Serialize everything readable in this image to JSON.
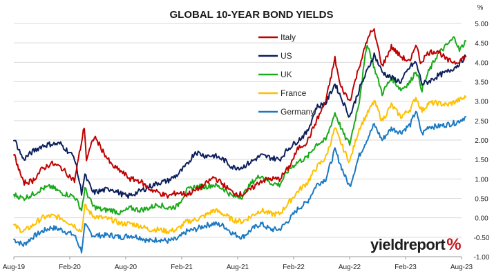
{
  "chart_data": {
    "type": "line",
    "title": "GLOBAL 10-YEAR BOND YIELDS",
    "y_unit": "%",
    "ylim": [
      -1.0,
      5.0
    ],
    "y_ticks": [
      "5.00",
      "4.50",
      "4.00",
      "3.50",
      "3.00",
      "2.50",
      "2.00",
      "1.50",
      "1.00",
      "0.50",
      "0.00",
      "-0.50",
      "-1.00"
    ],
    "x_tick_labels": [
      "Aug-19",
      "Feb-20",
      "Aug-20",
      "Feb-21",
      "Aug-21",
      "Feb-22",
      "Aug-22",
      "Feb-23",
      "Aug-23"
    ],
    "x_range": [
      "2019-08",
      "2023-08"
    ],
    "legend_position": "top-center",
    "grid": "horizontal",
    "series": [
      {
        "name": "Italy",
        "color": "#c00000",
        "points": [
          [
            "2019-08-01",
            1.65
          ],
          [
            "2019-09-01",
            0.9
          ],
          [
            "2019-10-01",
            0.95
          ],
          [
            "2019-11-01",
            1.25
          ],
          [
            "2019-12-01",
            1.4
          ],
          [
            "2020-01-01",
            1.3
          ],
          [
            "2020-02-15",
            0.95
          ],
          [
            "2020-03-18",
            2.35
          ],
          [
            "2020-03-25",
            1.5
          ],
          [
            "2020-04-20",
            2.1
          ],
          [
            "2020-05-15",
            1.75
          ],
          [
            "2020-06-15",
            1.35
          ],
          [
            "2020-07-15",
            1.2
          ],
          [
            "2020-08-15",
            1.0
          ],
          [
            "2020-09-15",
            0.95
          ],
          [
            "2020-10-15",
            0.75
          ],
          [
            "2020-11-15",
            0.65
          ],
          [
            "2020-12-15",
            0.55
          ],
          [
            "2021-01-15",
            0.65
          ],
          [
            "2021-02-15",
            0.6
          ],
          [
            "2021-03-15",
            0.7
          ],
          [
            "2021-04-15",
            0.85
          ],
          [
            "2021-05-15",
            1.05
          ],
          [
            "2021-06-15",
            0.85
          ],
          [
            "2021-07-15",
            0.65
          ],
          [
            "2021-08-15",
            0.6
          ],
          [
            "2021-09-15",
            0.75
          ],
          [
            "2021-10-15",
            0.95
          ],
          [
            "2021-11-15",
            1.0
          ],
          [
            "2021-12-15",
            1.0
          ],
          [
            "2022-01-15",
            1.3
          ],
          [
            "2022-02-15",
            1.8
          ],
          [
            "2022-03-15",
            1.95
          ],
          [
            "2022-04-15",
            2.5
          ],
          [
            "2022-05-15",
            3.0
          ],
          [
            "2022-06-14",
            4.1
          ],
          [
            "2022-07-01",
            3.4
          ],
          [
            "2022-08-01",
            3.0
          ],
          [
            "2022-09-01",
            3.9
          ],
          [
            "2022-10-05",
            4.75
          ],
          [
            "2022-10-20",
            4.8
          ],
          [
            "2022-11-15",
            3.9
          ],
          [
            "2022-12-15",
            4.4
          ],
          [
            "2023-01-15",
            4.15
          ],
          [
            "2023-02-15",
            4.0
          ],
          [
            "2023-03-05",
            4.5
          ],
          [
            "2023-03-20",
            4.0
          ],
          [
            "2023-04-15",
            4.25
          ],
          [
            "2023-05-15",
            4.3
          ],
          [
            "2023-06-15",
            4.05
          ],
          [
            "2023-07-15",
            4.0
          ],
          [
            "2023-08-15",
            4.15
          ]
        ]
      },
      {
        "name": "US",
        "color": "#0c1f5c",
        "points": [
          [
            "2019-08-01",
            2.05
          ],
          [
            "2019-09-01",
            1.5
          ],
          [
            "2019-10-01",
            1.7
          ],
          [
            "2019-11-01",
            1.85
          ],
          [
            "2019-12-01",
            1.9
          ],
          [
            "2020-01-01",
            1.9
          ],
          [
            "2020-02-15",
            1.55
          ],
          [
            "2020-03-09",
            0.65
          ],
          [
            "2020-03-20",
            1.1
          ],
          [
            "2020-04-15",
            0.65
          ],
          [
            "2020-05-15",
            0.7
          ],
          [
            "2020-06-15",
            0.75
          ],
          [
            "2020-07-15",
            0.62
          ],
          [
            "2020-08-05",
            0.55
          ],
          [
            "2020-09-15",
            0.68
          ],
          [
            "2020-10-15",
            0.8
          ],
          [
            "2020-11-15",
            0.9
          ],
          [
            "2020-12-15",
            0.95
          ],
          [
            "2021-01-15",
            1.1
          ],
          [
            "2021-02-15",
            1.35
          ],
          [
            "2021-03-15",
            1.7
          ],
          [
            "2021-04-15",
            1.6
          ],
          [
            "2021-05-15",
            1.6
          ],
          [
            "2021-06-15",
            1.5
          ],
          [
            "2021-07-15",
            1.3
          ],
          [
            "2021-08-15",
            1.3
          ],
          [
            "2021-09-15",
            1.45
          ],
          [
            "2021-10-15",
            1.6
          ],
          [
            "2021-11-15",
            1.55
          ],
          [
            "2021-12-15",
            1.5
          ],
          [
            "2022-01-15",
            1.8
          ],
          [
            "2022-02-15",
            2.0
          ],
          [
            "2022-03-15",
            2.2
          ],
          [
            "2022-04-15",
            2.85
          ],
          [
            "2022-05-15",
            2.95
          ],
          [
            "2022-06-14",
            3.45
          ],
          [
            "2022-07-15",
            2.9
          ],
          [
            "2022-08-01",
            2.6
          ],
          [
            "2022-09-01",
            3.3
          ],
          [
            "2022-10-20",
            4.2
          ],
          [
            "2022-11-15",
            3.75
          ],
          [
            "2022-12-15",
            3.6
          ],
          [
            "2023-01-15",
            3.5
          ],
          [
            "2023-02-15",
            3.9
          ],
          [
            "2023-03-05",
            4.0
          ],
          [
            "2023-03-25",
            3.45
          ],
          [
            "2023-04-15",
            3.5
          ],
          [
            "2023-05-15",
            3.65
          ],
          [
            "2023-06-15",
            3.75
          ],
          [
            "2023-07-15",
            3.9
          ],
          [
            "2023-08-15",
            4.15
          ]
        ]
      },
      {
        "name": "UK",
        "color": "#1aaa1a",
        "points": [
          [
            "2019-08-01",
            0.6
          ],
          [
            "2019-09-01",
            0.5
          ],
          [
            "2019-10-01",
            0.6
          ],
          [
            "2019-11-01",
            0.75
          ],
          [
            "2019-12-01",
            0.8
          ],
          [
            "2020-01-01",
            0.65
          ],
          [
            "2020-02-15",
            0.55
          ],
          [
            "2020-03-09",
            0.2
          ],
          [
            "2020-03-20",
            0.75
          ],
          [
            "2020-04-15",
            0.3
          ],
          [
            "2020-05-15",
            0.2
          ],
          [
            "2020-06-15",
            0.2
          ],
          [
            "2020-07-15",
            0.12
          ],
          [
            "2020-08-15",
            0.25
          ],
          [
            "2020-09-15",
            0.2
          ],
          [
            "2020-10-15",
            0.25
          ],
          [
            "2020-11-15",
            0.35
          ],
          [
            "2020-12-15",
            0.25
          ],
          [
            "2021-01-15",
            0.3
          ],
          [
            "2021-02-15",
            0.7
          ],
          [
            "2021-03-15",
            0.8
          ],
          [
            "2021-04-15",
            0.8
          ],
          [
            "2021-05-15",
            0.85
          ],
          [
            "2021-06-15",
            0.75
          ],
          [
            "2021-07-15",
            0.55
          ],
          [
            "2021-08-15",
            0.55
          ],
          [
            "2021-09-15",
            0.9
          ],
          [
            "2021-10-15",
            1.1
          ],
          [
            "2021-11-15",
            0.9
          ],
          [
            "2021-12-15",
            0.85
          ],
          [
            "2022-01-15",
            1.25
          ],
          [
            "2022-02-15",
            1.45
          ],
          [
            "2022-03-15",
            1.55
          ],
          [
            "2022-04-15",
            1.9
          ],
          [
            "2022-05-15",
            2.0
          ],
          [
            "2022-06-14",
            2.7
          ],
          [
            "2022-07-15",
            2.1
          ],
          [
            "2022-08-01",
            1.9
          ],
          [
            "2022-09-01",
            3.0
          ],
          [
            "2022-09-27",
            4.5
          ],
          [
            "2022-10-15",
            4.0
          ],
          [
            "2022-11-15",
            3.2
          ],
          [
            "2022-12-15",
            3.6
          ],
          [
            "2023-01-15",
            3.3
          ],
          [
            "2023-02-15",
            3.5
          ],
          [
            "2023-03-05",
            3.8
          ],
          [
            "2023-03-25",
            3.3
          ],
          [
            "2023-04-15",
            3.75
          ],
          [
            "2023-05-15",
            4.2
          ],
          [
            "2023-06-15",
            4.45
          ],
          [
            "2023-07-10",
            4.65
          ],
          [
            "2023-07-25",
            4.3
          ],
          [
            "2023-08-15",
            4.55
          ]
        ]
      },
      {
        "name": "France",
        "color": "#ffc000",
        "points": [
          [
            "2019-08-01",
            -0.2
          ],
          [
            "2019-09-01",
            -0.35
          ],
          [
            "2019-10-01",
            -0.2
          ],
          [
            "2019-11-01",
            0.0
          ],
          [
            "2019-12-01",
            0.05
          ],
          [
            "2020-01-01",
            0.0
          ],
          [
            "2020-02-15",
            -0.2
          ],
          [
            "2020-03-09",
            -0.35
          ],
          [
            "2020-03-20",
            0.3
          ],
          [
            "2020-04-15",
            0.05
          ],
          [
            "2020-05-15",
            0.0
          ],
          [
            "2020-06-15",
            -0.05
          ],
          [
            "2020-07-15",
            -0.15
          ],
          [
            "2020-08-15",
            -0.15
          ],
          [
            "2020-09-15",
            -0.2
          ],
          [
            "2020-10-15",
            -0.3
          ],
          [
            "2020-11-15",
            -0.3
          ],
          [
            "2020-12-15",
            -0.35
          ],
          [
            "2021-01-15",
            -0.3
          ],
          [
            "2021-02-15",
            -0.1
          ],
          [
            "2021-03-15",
            -0.05
          ],
          [
            "2021-04-15",
            0.05
          ],
          [
            "2021-05-15",
            0.2
          ],
          [
            "2021-06-15",
            0.1
          ],
          [
            "2021-07-15",
            -0.05
          ],
          [
            "2021-08-15",
            -0.1
          ],
          [
            "2021-09-15",
            0.05
          ],
          [
            "2021-10-15",
            0.2
          ],
          [
            "2021-11-15",
            0.1
          ],
          [
            "2021-12-15",
            0.1
          ],
          [
            "2022-01-15",
            0.4
          ],
          [
            "2022-02-15",
            0.7
          ],
          [
            "2022-03-15",
            0.9
          ],
          [
            "2022-04-15",
            1.3
          ],
          [
            "2022-05-15",
            1.55
          ],
          [
            "2022-06-14",
            2.3
          ],
          [
            "2022-07-15",
            1.7
          ],
          [
            "2022-08-01",
            1.45
          ],
          [
            "2022-09-01",
            2.3
          ],
          [
            "2022-10-20",
            3.0
          ],
          [
            "2022-11-15",
            2.5
          ],
          [
            "2022-12-15",
            2.9
          ],
          [
            "2023-01-15",
            2.6
          ],
          [
            "2023-02-15",
            2.8
          ],
          [
            "2023-03-05",
            3.1
          ],
          [
            "2023-03-25",
            2.75
          ],
          [
            "2023-04-15",
            2.95
          ],
          [
            "2023-05-15",
            2.95
          ],
          [
            "2023-06-15",
            2.9
          ],
          [
            "2023-07-15",
            3.0
          ],
          [
            "2023-08-15",
            3.1
          ]
        ]
      },
      {
        "name": "Germany",
        "color": "#1a78c2",
        "points": [
          [
            "2019-08-01",
            -0.55
          ],
          [
            "2019-09-01",
            -0.7
          ],
          [
            "2019-10-01",
            -0.5
          ],
          [
            "2019-11-01",
            -0.35
          ],
          [
            "2019-12-01",
            -0.25
          ],
          [
            "2020-01-01",
            -0.3
          ],
          [
            "2020-02-15",
            -0.45
          ],
          [
            "2020-03-09",
            -0.85
          ],
          [
            "2020-03-20",
            -0.2
          ],
          [
            "2020-04-15",
            -0.45
          ],
          [
            "2020-05-15",
            -0.45
          ],
          [
            "2020-06-15",
            -0.45
          ],
          [
            "2020-07-15",
            -0.5
          ],
          [
            "2020-08-15",
            -0.45
          ],
          [
            "2020-09-15",
            -0.5
          ],
          [
            "2020-10-15",
            -0.6
          ],
          [
            "2020-11-15",
            -0.55
          ],
          [
            "2020-12-15",
            -0.6
          ],
          [
            "2021-01-15",
            -0.55
          ],
          [
            "2021-02-15",
            -0.35
          ],
          [
            "2021-03-15",
            -0.3
          ],
          [
            "2021-04-15",
            -0.2
          ],
          [
            "2021-05-15",
            -0.15
          ],
          [
            "2021-06-15",
            -0.2
          ],
          [
            "2021-07-15",
            -0.4
          ],
          [
            "2021-08-15",
            -0.5
          ],
          [
            "2021-09-15",
            -0.3
          ],
          [
            "2021-10-15",
            -0.15
          ],
          [
            "2021-11-15",
            -0.3
          ],
          [
            "2021-12-15",
            -0.3
          ],
          [
            "2022-01-15",
            -0.05
          ],
          [
            "2022-02-15",
            0.25
          ],
          [
            "2022-03-15",
            0.4
          ],
          [
            "2022-04-15",
            0.85
          ],
          [
            "2022-05-15",
            1.0
          ],
          [
            "2022-06-14",
            1.75
          ],
          [
            "2022-07-15",
            1.1
          ],
          [
            "2022-08-01",
            0.8
          ],
          [
            "2022-09-01",
            1.6
          ],
          [
            "2022-10-20",
            2.4
          ],
          [
            "2022-11-15",
            2.0
          ],
          [
            "2022-12-15",
            2.3
          ],
          [
            "2023-01-15",
            2.2
          ],
          [
            "2023-02-15",
            2.4
          ],
          [
            "2023-03-05",
            2.75
          ],
          [
            "2023-03-25",
            2.15
          ],
          [
            "2023-04-15",
            2.35
          ],
          [
            "2023-05-15",
            2.35
          ],
          [
            "2023-06-15",
            2.4
          ],
          [
            "2023-07-15",
            2.45
          ],
          [
            "2023-08-15",
            2.6
          ]
        ]
      }
    ]
  },
  "branding": {
    "logo_text": "yieldreport",
    "logo_symbol": "%"
  }
}
